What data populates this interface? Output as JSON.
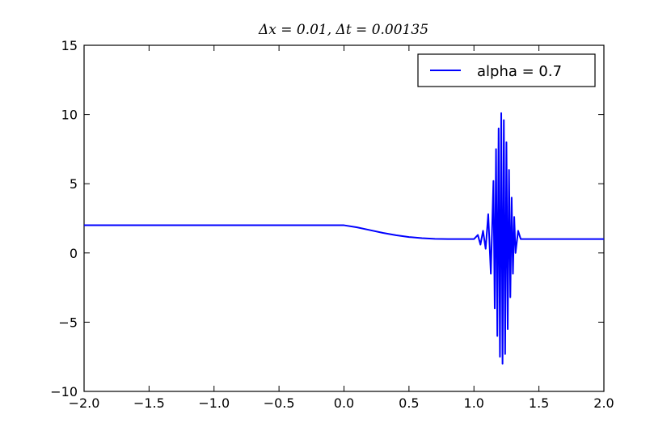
{
  "chart_data": {
    "type": "line",
    "title": "Δx = 0.01, Δt = 0.00135",
    "xlabel": "",
    "ylabel": "",
    "xlim": [
      -2.0,
      2.0
    ],
    "ylim": [
      -10,
      15
    ],
    "x_ticks": [
      "−2.0",
      "−1.5",
      "−1.0",
      "−0.5",
      "0.0",
      "0.5",
      "1.0",
      "1.5",
      "2.0"
    ],
    "y_ticks": [
      "−10",
      "−5",
      "0",
      "5",
      "10",
      "15"
    ],
    "grid": false,
    "legend_position": "top-right",
    "series": [
      {
        "name": "alpha = 0.7",
        "color": "#0000ff",
        "description_shape": {
          "left_level": 2.0,
          "right_level": 1.0,
          "ramp_start": 0.0,
          "ramp_end": 0.75,
          "packet_center": 1.21,
          "packet_peak_max": 10.1,
          "packet_peak_min": -8.0,
          "packet_start": 1.0,
          "packet_end": 1.36
        },
        "points": [
          [
            -2.0,
            2.0
          ],
          [
            -1.5,
            2.0
          ],
          [
            -1.0,
            2.0
          ],
          [
            -0.5,
            2.0
          ],
          [
            0.0,
            2.0
          ],
          [
            0.1,
            1.85
          ],
          [
            0.2,
            1.65
          ],
          [
            0.3,
            1.45
          ],
          [
            0.4,
            1.28
          ],
          [
            0.5,
            1.15
          ],
          [
            0.6,
            1.07
          ],
          [
            0.7,
            1.02
          ],
          [
            0.8,
            1.0
          ],
          [
            0.9,
            1.0
          ],
          [
            1.0,
            1.0
          ],
          [
            1.03,
            1.3
          ],
          [
            1.05,
            0.6
          ],
          [
            1.07,
            1.6
          ],
          [
            1.09,
            0.3
          ],
          [
            1.11,
            2.8
          ],
          [
            1.13,
            -1.5
          ],
          [
            1.15,
            5.2
          ],
          [
            1.16,
            -4.0
          ],
          [
            1.17,
            7.5
          ],
          [
            1.18,
            -6.0
          ],
          [
            1.19,
            9.0
          ],
          [
            1.2,
            -7.5
          ],
          [
            1.21,
            10.1
          ],
          [
            1.22,
            -8.0
          ],
          [
            1.23,
            9.6
          ],
          [
            1.24,
            -7.3
          ],
          [
            1.25,
            8.0
          ],
          [
            1.26,
            -5.5
          ],
          [
            1.27,
            6.0
          ],
          [
            1.28,
            -3.2
          ],
          [
            1.29,
            4.0
          ],
          [
            1.3,
            -1.5
          ],
          [
            1.31,
            2.6
          ],
          [
            1.32,
            0.0
          ],
          [
            1.34,
            1.6
          ],
          [
            1.36,
            1.0
          ],
          [
            1.5,
            1.0
          ],
          [
            1.75,
            1.0
          ],
          [
            2.0,
            1.0
          ]
        ]
      }
    ]
  }
}
